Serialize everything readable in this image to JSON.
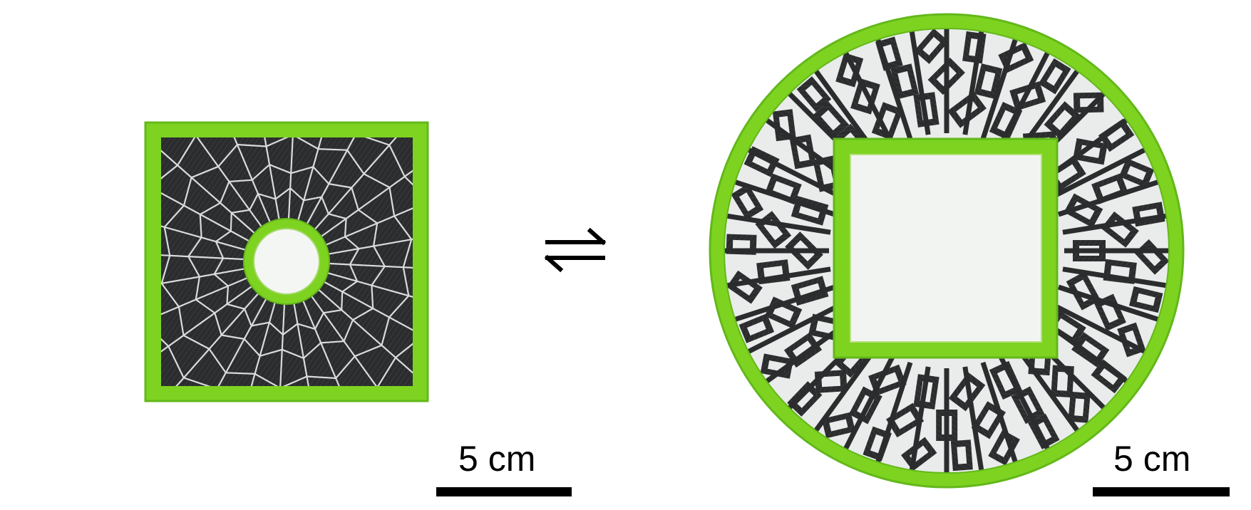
{
  "figure": {
    "left_specimen": {
      "shape": "square frame with circular opening",
      "state": "closed"
    },
    "right_specimen": {
      "shape": "circular frame with square opening",
      "state": "expanded"
    },
    "transition_symbol": "⇌",
    "scale_bars": [
      {
        "label": "5 cm"
      },
      {
        "label": "5 cm"
      }
    ],
    "colors": {
      "frame_green": "#7ed321",
      "frame_green_dark": "#63b81a",
      "tiles_black": "#2b2c2e",
      "gaps": "#e9ecea",
      "background": "#ffffff"
    }
  }
}
